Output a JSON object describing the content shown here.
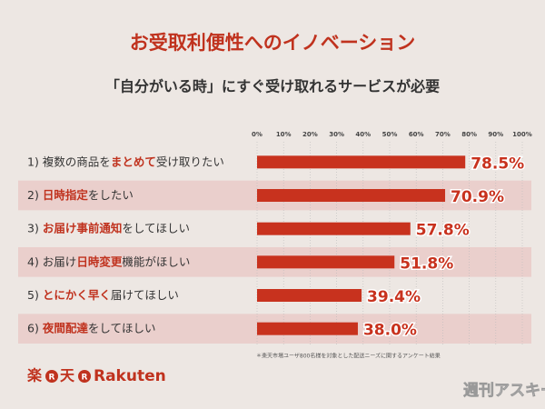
{
  "chart_data": {
    "type": "bar",
    "orientation": "horizontal",
    "title": "お受取利便性へのイノベーション",
    "subtitle": "「自分がいる時」にすぐ受け取れるサービスが必要",
    "categories": [
      [
        "1) 複数の商品を",
        "まとめて",
        "受け取りたい"
      ],
      [
        "2) ",
        "日時指定",
        "をしたい"
      ],
      [
        "3) ",
        "お届け事前通知",
        "をしてほしい"
      ],
      [
        "4) お届け",
        "日時変更",
        "機能がほしい"
      ],
      [
        "5) ",
        "とにかく早く",
        "届けてほしい"
      ],
      [
        "6) ",
        "夜間配達",
        "をしてほしい"
      ]
    ],
    "values": [
      78.5,
      70.9,
      57.8,
      51.8,
      39.4,
      38.0
    ],
    "value_labels": [
      "78.5%",
      "70.9%",
      "57.8%",
      "51.8%",
      "39.4%",
      "38.0%"
    ],
    "color": "#c8321e",
    "xlim": [
      0,
      100
    ],
    "xticks": [
      {
        "value": 0,
        "label": "0%"
      },
      {
        "value": 10,
        "label": "10%"
      },
      {
        "value": 20,
        "label": "20%"
      },
      {
        "value": 30,
        "label": "30%"
      },
      {
        "value": 40,
        "label": "40%"
      },
      {
        "value": 50,
        "label": "50%"
      },
      {
        "value": 60,
        "label": "60%"
      },
      {
        "value": 70,
        "label": "70%"
      },
      {
        "value": 80,
        "label": "80%"
      },
      {
        "value": 90,
        "label": "90%"
      },
      {
        "value": 100,
        "label": "100%"
      }
    ],
    "grid": true,
    "footnote": "＊楽天市場ユーザ800名様を対象とした配送ニーズに関するアンケート結果"
  },
  "branding": {
    "jp_left": "楽",
    "mark": "R",
    "jp_right": "天",
    "en": "Rakuten",
    "watermark": "週刊アスキー"
  }
}
